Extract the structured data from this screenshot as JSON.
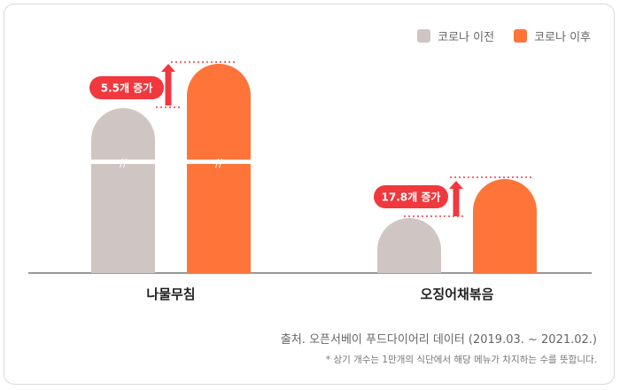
{
  "legend": {
    "before": "코로나 이전",
    "after": "코로나 이후"
  },
  "colors": {
    "before": "#cfc5c2",
    "after": "#fe7439",
    "badge": "#f0383d",
    "axis": "#333333"
  },
  "source": "출처. 오픈서베이 푸드다이어리 데이터 (2019.03. ~ 2021.02.)",
  "note": "* 상기 개수는 1만개의 식단에서 해당 메뉴가 차지하는 수를 뜻합니다.",
  "chart_data": {
    "type": "bar",
    "categories": [
      "나물무침",
      "오징어채볶음"
    ],
    "series": [
      {
        "name": "코로나 이전",
        "values": [
          null,
          null
        ]
      },
      {
        "name": "코로나 이후",
        "values": [
          null,
          null
        ]
      }
    ],
    "annotations": [
      "5.5개 증가",
      "17.8개 증가"
    ],
    "axis_break": "first category (나물무침)",
    "legend_position": "top-right",
    "grid": false
  }
}
